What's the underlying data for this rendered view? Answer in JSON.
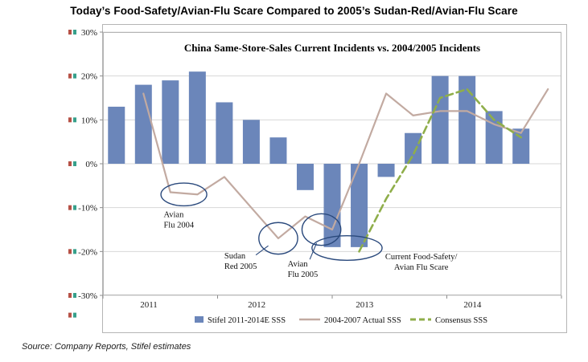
{
  "title": "Today’s Food-Safety/Avian-Flu Scare Compared to 2005’s Sudan-Red/Avian-Flu Scare",
  "source": "Source: Company Reports, Stifel estimates",
  "chart_data": {
    "type": "bar",
    "title": "China Same-Store-Sales Current Incidents vs. 2004/2005 Incidents",
    "x_years": [
      "2011",
      "2012",
      "2013",
      "2014"
    ],
    "quarters_per_year": 4,
    "total_slots": 17,
    "y_ticks": [
      30,
      20,
      10,
      0,
      -10,
      -20,
      -30
    ],
    "y_tick_suffix": "%",
    "ylim": [
      -30,
      30
    ],
    "grid": true,
    "legend_position": "bottom",
    "bar_series": {
      "name": "Stifel 2011-2014E SSS",
      "values": [
        13,
        18,
        19,
        21,
        14,
        10,
        6,
        -6,
        -19,
        -19,
        -3,
        7,
        20,
        20,
        12,
        8
      ]
    },
    "line_series": [
      {
        "name": "2004-2007 Actual SSS",
        "style": "solid",
        "values": [
          null,
          16,
          -6.5,
          -7,
          -3,
          -10,
          -17,
          -12,
          -15,
          0,
          16,
          11,
          12,
          12,
          9,
          7,
          17
        ]
      },
      {
        "name": "Consensus SSS",
        "style": "dashed",
        "values": [
          null,
          null,
          null,
          null,
          null,
          null,
          null,
          null,
          null,
          -20,
          -8,
          2,
          15,
          17,
          10,
          6,
          null
        ]
      }
    ],
    "annotations": [
      {
        "lines": [
          "Avian",
          "Flu 2004"
        ],
        "label_q": 1.75,
        "label_val": -12.2,
        "align": "start",
        "ellipse": {
          "cx_q": 2.5,
          "cy_val": -7,
          "rx_q": 0.85,
          "ry_val": 2.6
        }
      },
      {
        "lines": [
          "Sudan",
          "Red 2005"
        ],
        "label_q": 4.0,
        "label_val": -21.6,
        "align": "start",
        "ellipse": {
          "cx_q": 6.0,
          "cy_val": -17,
          "rx_q": 0.72,
          "ry_val": 3.6
        },
        "connector": {
          "x1_q": 5.17,
          "y1_val": -20.8,
          "x2_q": 5.63,
          "y2_val": -18.7
        }
      },
      {
        "lines": [
          "Avian",
          "Flu 2005"
        ],
        "label_q": 6.35,
        "label_val": -23.4,
        "align": "start",
        "ellipse": {
          "cx_q": 7.6,
          "cy_val": -15,
          "rx_q": 0.72,
          "ry_val": 3.6
        },
        "connector": {
          "x1_q": 7.17,
          "y1_val": -21.8,
          "x2_q": 7.42,
          "y2_val": -18.1
        }
      },
      {
        "lines": [
          "Current Food-Safety/",
          "Avian Flu Scare"
        ],
        "label_q": 11.3,
        "label_val": -21.8,
        "align": "middle",
        "ellipse": {
          "cx_q": 8.55,
          "cy_val": -19.2,
          "rx_q": 1.3,
          "ry_val": 2.8
        }
      }
    ],
    "colors": {
      "bar": "#6b86ba",
      "actual_line": "#c2aaa1",
      "consensus_line": "#8fae4a",
      "annotation": "#2b4a7d",
      "grid": "#d7d7d7",
      "border": "#b5b5b5",
      "tick": "#8c8c8c",
      "text": "#1a1a1a"
    }
  },
  "edge_marks": {
    "values": [
      30,
      20,
      10,
      0,
      -10,
      -20,
      -30,
      -34.5
    ],
    "colors": [
      "#a93226",
      "#148f77"
    ]
  }
}
